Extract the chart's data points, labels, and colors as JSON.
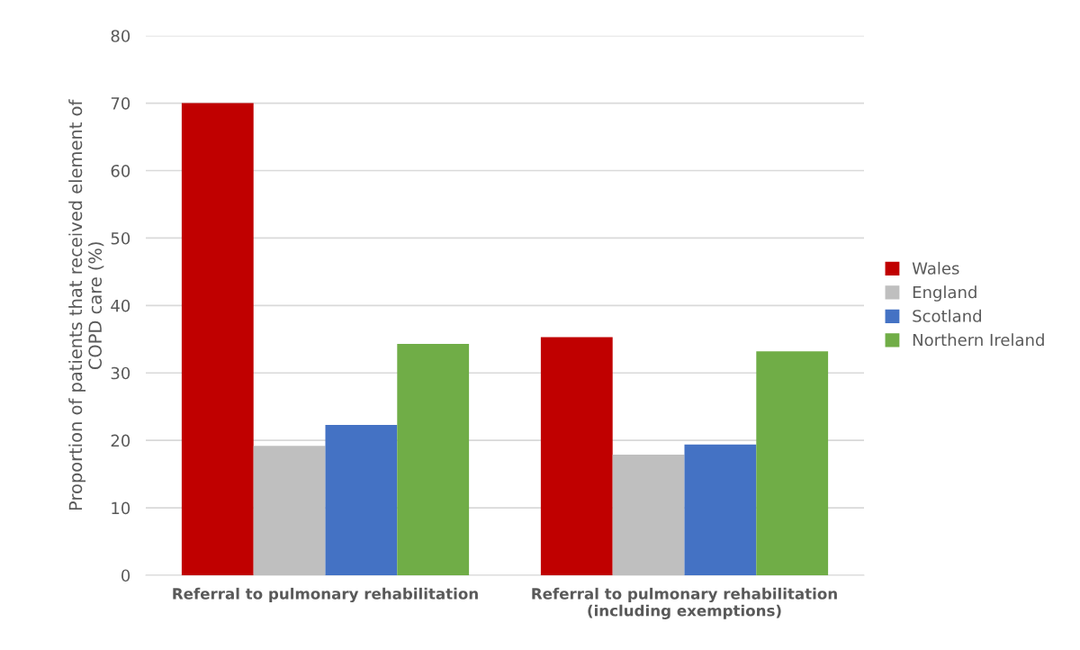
{
  "chart_data": {
    "type": "bar",
    "ylabel": "Proportion of patients that received element of\nCOPD care (%)",
    "categories": [
      "Referral to pulmonary rehabilitation",
      "Referral to pulmonary rehabilitation\n(including exemptions)"
    ],
    "series": [
      {
        "name": "Wales",
        "color": "#c00000",
        "values": [
          70.0,
          35.3
        ]
      },
      {
        "name": "England",
        "color": "#bfbfbf",
        "values": [
          19.2,
          17.9
        ]
      },
      {
        "name": "Scotland",
        "color": "#4472c4",
        "values": [
          22.3,
          19.4
        ]
      },
      {
        "name": "Northern Ireland",
        "color": "#70ad47",
        "values": [
          34.3,
          33.2
        ]
      }
    ],
    "ylim": [
      0,
      80
    ],
    "yticks": [
      0,
      10,
      20,
      30,
      40,
      50,
      60,
      70,
      80
    ],
    "grid": "y",
    "legend": "right"
  }
}
